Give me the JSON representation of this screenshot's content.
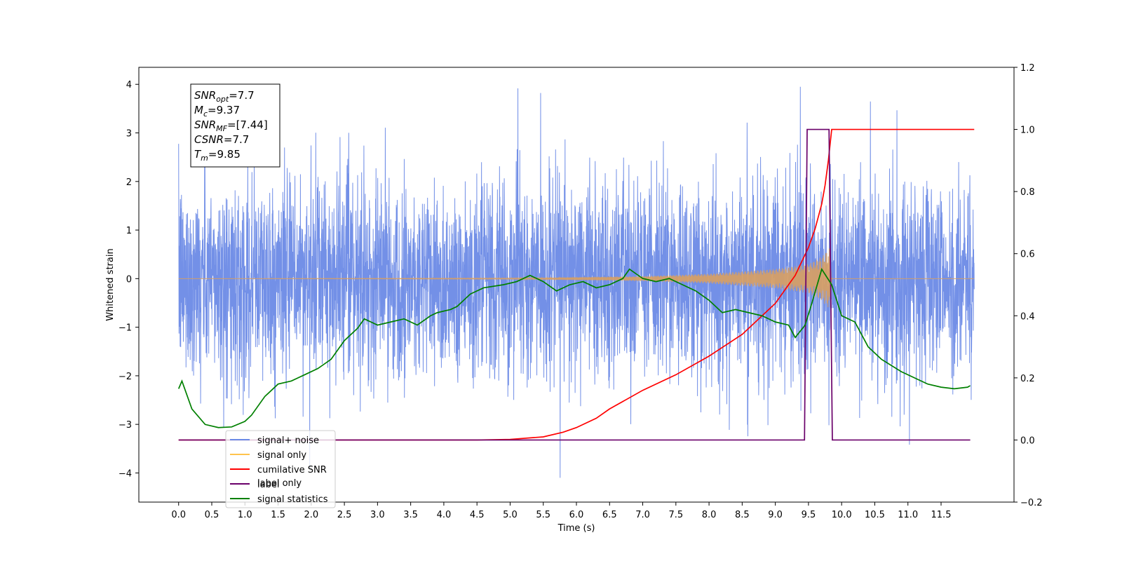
{
  "chart_data": {
    "type": "line",
    "title": "",
    "xlabel": "Time (s)",
    "ylabel": "Whitened strain",
    "xlim": [
      -0.6,
      12.6
    ],
    "ylim": [
      -4.6,
      4.35
    ],
    "y2lim": [
      -0.2,
      1.2
    ],
    "xticks": [
      "0.0",
      "0.5",
      "1.0",
      "1.5",
      "2.0",
      "2.5",
      "3.0",
      "3.5",
      "4.0",
      "4.5",
      "5.0",
      "5.5",
      "6.0",
      "6.5",
      "7.0",
      "7.5",
      "8.0",
      "8.5",
      "9.0",
      "9.5",
      "10.0",
      "10.5",
      "11.0",
      "11.5"
    ],
    "yticks": [
      "4",
      "3",
      "2",
      "1",
      "0",
      "−1",
      "−2",
      "−3",
      "−4"
    ],
    "y2ticks": [
      "1.2",
      "1.0",
      "0.8",
      "0.6",
      "0.4",
      "0.2",
      "0.0",
      "−0.2"
    ],
    "grid": false,
    "legend_position": "lower-left",
    "annotation": [
      {
        "sym": "SNR",
        "sub": "opt",
        "val": "=7.7"
      },
      {
        "sym": "M",
        "sub": "c",
        "val": "=9.37"
      },
      {
        "sym": "SNR",
        "sub": "MF",
        "val": "=[7.44]"
      },
      {
        "sym": "CSNR",
        "sub": "",
        "val": "=7.7"
      },
      {
        "sym": "T",
        "sub": "m",
        "val": "=9.85"
      }
    ],
    "legend": [
      {
        "label": "signal+ noise",
        "color": "#6b8ae6"
      },
      {
        "label": "signal only",
        "color": "#ffc34d"
      },
      {
        "label": "cumilative SNR",
        "color": "#ff0000"
      },
      {
        "label": "label",
        "color": "#6a006a"
      },
      {
        "label": "signal statistics",
        "color": "#008000"
      }
    ],
    "legend_hidden_text": "label only",
    "series": [
      {
        "name": "signal+ noise",
        "axis": "left",
        "color": "#6b8ae6",
        "x_range": [
          0.0,
          12.0
        ],
        "description": "dense whitened noise, approx. zero-mean, spanning about -3 to +3.6 with peaks to 3.95 and -4.1"
      },
      {
        "name": "signal only",
        "axis": "left",
        "color": "#d9a060",
        "chirp_envelope": {
          "x": [
            0.0,
            5.0,
            7.0,
            8.0,
            9.0,
            9.5,
            9.7,
            9.83,
            9.85
          ],
          "amp": [
            0.0,
            0.01,
            0.05,
            0.1,
            0.2,
            0.3,
            0.45,
            0.65,
            0.0
          ]
        }
      },
      {
        "name": "cumilative SNR",
        "axis": "right",
        "color": "#ff0000",
        "x": [
          0.0,
          4.5,
          5.0,
          5.5,
          5.8,
          6.0,
          6.3,
          6.5,
          7.0,
          7.5,
          8.0,
          8.5,
          9.0,
          9.3,
          9.5,
          9.6,
          9.7,
          9.75,
          9.8,
          9.85,
          12.0
        ],
        "values": [
          0.0,
          0.0,
          0.002,
          0.01,
          0.025,
          0.04,
          0.07,
          0.1,
          0.16,
          0.21,
          0.27,
          0.34,
          0.44,
          0.53,
          0.62,
          0.68,
          0.76,
          0.82,
          0.9,
          1.0,
          1.0
        ]
      },
      {
        "name": "label",
        "axis": "right",
        "color": "#6a006a",
        "x": [
          0.0,
          9.44,
          9.48,
          9.81,
          9.86,
          11.94
        ],
        "values": [
          0.0,
          0.0,
          1.0,
          1.0,
          0.0,
          0.0
        ]
      },
      {
        "name": "signal statistics",
        "axis": "right",
        "color": "#008000",
        "x": [
          0.0,
          0.05,
          0.2,
          0.4,
          0.6,
          0.8,
          1.0,
          1.1,
          1.3,
          1.5,
          1.7,
          1.8,
          1.9,
          2.1,
          2.3,
          2.5,
          2.7,
          2.8,
          2.9,
          3.0,
          3.2,
          3.4,
          3.6,
          3.8,
          3.9,
          4.1,
          4.2,
          4.4,
          4.6,
          4.9,
          5.1,
          5.3,
          5.4,
          5.5,
          5.7,
          5.9,
          6.1,
          6.3,
          6.5,
          6.7,
          6.8,
          7.0,
          7.2,
          7.4,
          7.6,
          7.8,
          8.0,
          8.2,
          8.4,
          8.6,
          8.8,
          9.0,
          9.2,
          9.3,
          9.45,
          9.55,
          9.7,
          9.85,
          10.0,
          10.2,
          10.4,
          10.6,
          10.9,
          11.1,
          11.3,
          11.5,
          11.7,
          11.9,
          11.94
        ],
        "values": [
          0.165,
          0.19,
          0.1,
          0.05,
          0.04,
          0.042,
          0.06,
          0.08,
          0.14,
          0.18,
          0.19,
          0.2,
          0.21,
          0.23,
          0.26,
          0.32,
          0.36,
          0.39,
          0.38,
          0.37,
          0.38,
          0.39,
          0.37,
          0.4,
          0.41,
          0.42,
          0.43,
          0.47,
          0.49,
          0.5,
          0.51,
          0.53,
          0.52,
          0.51,
          0.48,
          0.5,
          0.51,
          0.49,
          0.5,
          0.52,
          0.55,
          0.52,
          0.51,
          0.52,
          0.5,
          0.48,
          0.45,
          0.41,
          0.42,
          0.41,
          0.4,
          0.38,
          0.37,
          0.33,
          0.37,
          0.44,
          0.55,
          0.5,
          0.4,
          0.38,
          0.3,
          0.26,
          0.22,
          0.2,
          0.18,
          0.17,
          0.165,
          0.17,
          0.175
        ]
      }
    ]
  }
}
